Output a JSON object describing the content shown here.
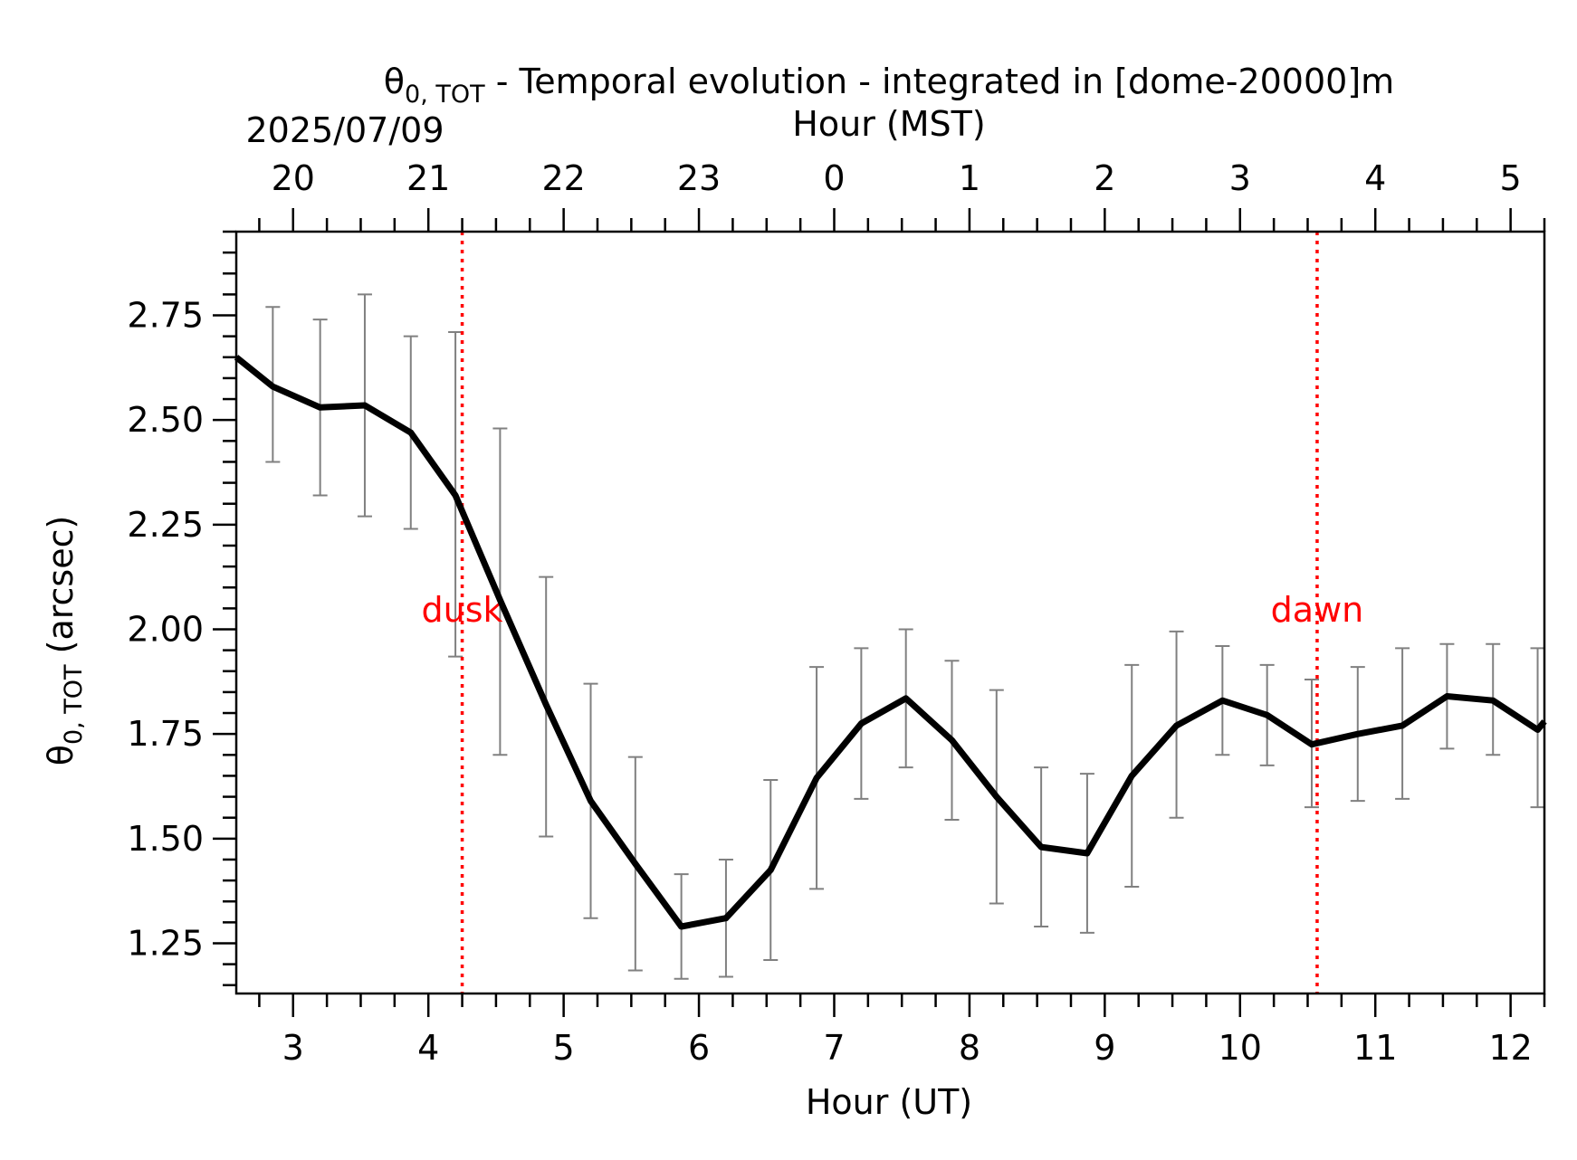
{
  "chart_data": {
    "type": "line",
    "title": "θ0,TOT - Temporal evolution - integrated in [dome-20000]m",
    "title_main": "θ",
    "title_sub": "0, TOT",
    "title_rest": " - Temporal evolution - integrated in [dome-20000]m",
    "date_label": "2025/07/09",
    "xlabel": "Hour (UT)",
    "x2label": "Hour (MST)",
    "ylabel": "θ0, TOT (arcsec)",
    "ylabel_main": "θ",
    "ylabel_sub": "0, TOT",
    "ylabel_rest": " (arcsec)",
    "xlim": [
      2.58,
      12.25
    ],
    "ylim": [
      1.13,
      2.95
    ],
    "x_ticks": [
      3,
      4,
      5,
      6,
      7,
      8,
      9,
      10,
      11,
      12
    ],
    "x_tick_labels": [
      "3",
      "4",
      "5",
      "6",
      "7",
      "8",
      "9",
      "10",
      "11",
      "12"
    ],
    "x2_ticks": [
      3,
      4,
      5,
      6,
      7,
      8,
      9,
      10,
      11,
      12
    ],
    "x2_tick_labels": [
      "20",
      "21",
      "22",
      "23",
      "0",
      "1",
      "2",
      "3",
      "4",
      "5"
    ],
    "y_ticks": [
      1.25,
      1.5,
      1.75,
      2.0,
      2.25,
      2.5,
      2.75
    ],
    "y_tick_labels": [
      "1.25",
      "1.50",
      "1.75",
      "2.00",
      "2.25",
      "2.50",
      "2.75"
    ],
    "grid": false,
    "series": [
      {
        "color": "#000000",
        "x": [
          2.58,
          2.85,
          3.2,
          3.53,
          3.87,
          4.2,
          4.53,
          4.87,
          5.2,
          5.53,
          5.87,
          6.2,
          6.53,
          6.87,
          7.2,
          7.53,
          7.87,
          8.2,
          8.53,
          8.87,
          9.2,
          9.53,
          9.87,
          10.2,
          10.53,
          10.87,
          11.2,
          11.53,
          11.87,
          12.2,
          12.25
        ],
        "y": [
          2.65,
          2.58,
          2.53,
          2.535,
          2.47,
          2.32,
          2.07,
          1.82,
          1.59,
          1.44,
          1.29,
          1.31,
          1.425,
          1.645,
          1.775,
          1.835,
          1.735,
          1.6,
          1.48,
          1.465,
          1.65,
          1.77,
          1.83,
          1.795,
          1.725,
          1.75,
          1.77,
          1.84,
          1.83,
          1.76,
          1.78
        ]
      }
    ],
    "error_bars": {
      "color": "#808080",
      "x": [
        2.85,
        3.2,
        3.53,
        3.87,
        4.2,
        4.53,
        4.87,
        5.2,
        5.53,
        5.87,
        6.2,
        6.53,
        6.87,
        7.2,
        7.53,
        7.87,
        8.2,
        8.53,
        8.87,
        9.2,
        9.53,
        9.87,
        10.2,
        10.53,
        10.87,
        11.2,
        11.53,
        11.87,
        12.2
      ],
      "low": [
        2.4,
        2.32,
        2.27,
        2.24,
        1.935,
        1.7,
        1.505,
        1.31,
        1.185,
        1.165,
        1.17,
        1.21,
        1.38,
        1.595,
        1.67,
        1.545,
        1.345,
        1.29,
        1.275,
        1.385,
        1.55,
        1.7,
        1.675,
        1.575,
        1.59,
        1.595,
        1.715,
        1.7,
        1.575
      ],
      "high": [
        2.77,
        2.74,
        2.8,
        2.7,
        2.71,
        2.48,
        2.125,
        1.87,
        1.695,
        1.415,
        1.45,
        1.64,
        1.91,
        1.955,
        2.0,
        1.925,
        1.855,
        1.67,
        1.655,
        1.915,
        1.995,
        1.96,
        1.915,
        1.88,
        1.91,
        1.955,
        1.965,
        1.965,
        1.955
      ]
    },
    "annotations": [
      {
        "x": 4.25,
        "label": "dusk",
        "color": "#ff0000"
      },
      {
        "x": 10.57,
        "label": "dawn",
        "color": "#ff0000"
      }
    ]
  }
}
